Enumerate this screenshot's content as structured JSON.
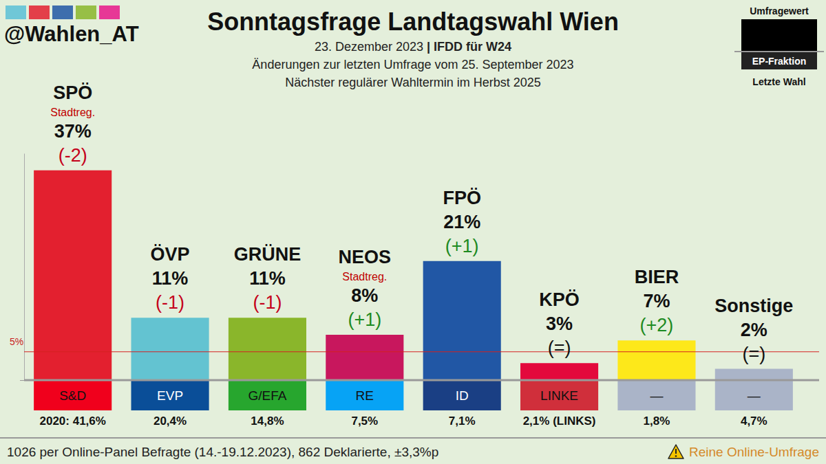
{
  "header": "@Wahlen_AT",
  "chart_data": {
    "type": "bar",
    "title": "Sonntagsfrage Landtagswahl Wien",
    "date": "23. Dezember 2023",
    "separator": "|",
    "source": "IFDD für W24",
    "subtitle": [
      "Änderungen zur letzten Umfrage vom 25. September 2023",
      "Nächster regulärer Wahltermin im Herbst 2025"
    ],
    "categories": [
      "SPÖ",
      "ÖVP",
      "GRÜNE",
      "NEOS",
      "FPÖ",
      "KPÖ",
      "BIER",
      "Sonstige"
    ],
    "values": [
      37,
      11,
      11,
      8,
      21,
      3,
      7,
      2
    ],
    "value_labels": [
      "37%",
      "11%",
      "11%",
      "8%",
      "21%",
      "3%",
      "7%",
      "2%"
    ],
    "colors": [
      "#e3202f",
      "#63c3d1",
      "#8ab62b",
      "#c8175d",
      "#2157a5",
      "#e3093c",
      "#fde81a",
      "#aab4c8"
    ],
    "changes": [
      -2,
      -1,
      -1,
      1,
      1,
      0,
      2,
      0
    ],
    "change_labels": [
      "(-2)",
      "(-1)",
      "(-1)",
      "(+1)",
      "(+1)",
      "(=)",
      "(+2)",
      "(=)"
    ],
    "government": [
      "Stadtreg.",
      null,
      null,
      "Stadtreg.",
      null,
      null,
      null,
      null
    ],
    "ep_factions": [
      "S&D",
      "EVP",
      "G/EFA",
      "RE",
      "ID",
      "LINKE",
      "—",
      "—"
    ],
    "ep_colors": [
      "#f0001c",
      "#0a4e98",
      "#27a62e",
      "#07a3f5",
      "#1a3f84",
      "#d02f3b",
      "#aab4c8",
      "#aab4c8"
    ],
    "last_election": [
      41.6,
      20.4,
      14.8,
      7.5,
      7.1,
      2.1,
      1.8,
      4.7
    ],
    "last_election_labels": [
      "2020: 41,6%",
      "20,4%",
      "14,8%",
      "7,5%",
      "7,1%",
      "2,1% (LINKS)",
      "1,8%",
      "4,7%"
    ],
    "threshold": {
      "value": 5,
      "label": "5%"
    },
    "ylim": [
      0,
      40
    ],
    "yticks": [
      0
    ],
    "tick_labels": false,
    "data_labels": true
  },
  "legend_box": {
    "value": "Umfragewert",
    "faction": "EP-Fraktion",
    "last": "Letzte Wahl"
  },
  "footer": {
    "note": "1026 per Online-Panel Befragte (14.-19.12.2023), 862 Deklarierte, ±3,3%p",
    "warning": "Reine Online-Umfrage"
  }
}
